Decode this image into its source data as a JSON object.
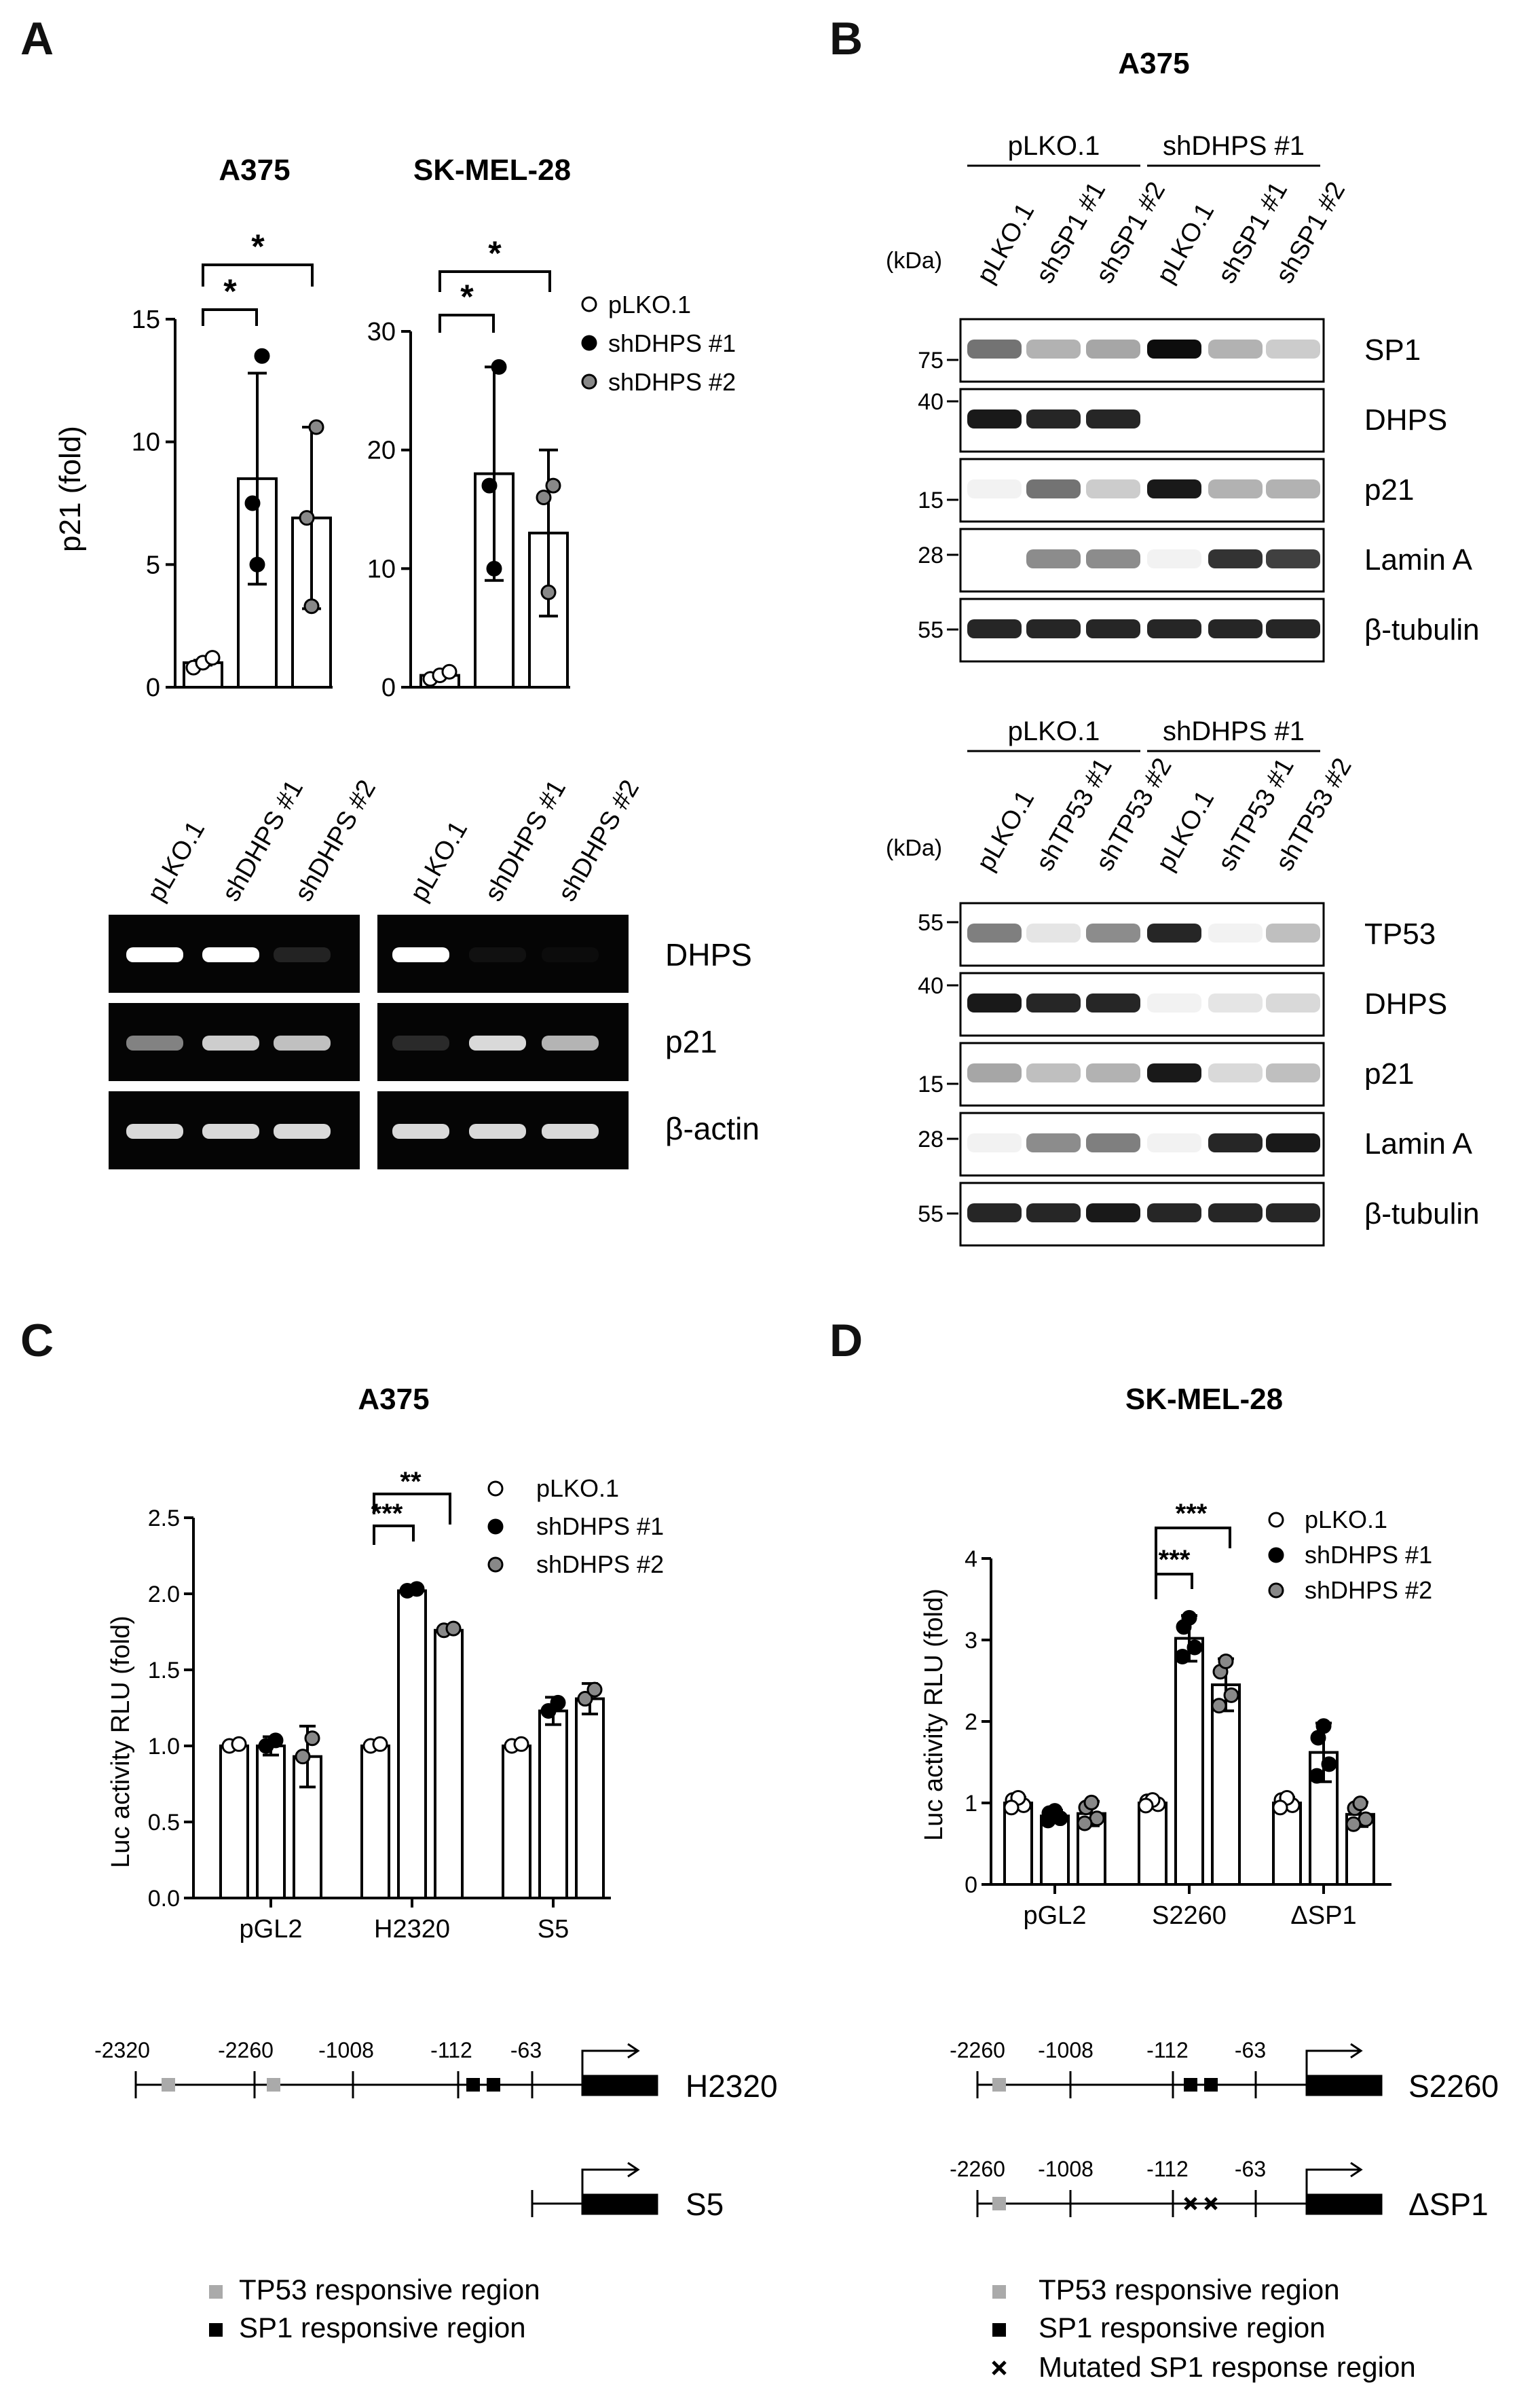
{
  "panels": {
    "A": {
      "letter": "A",
      "chart_titles": [
        "A375",
        "SK-MEL-28"
      ],
      "ylabel": "p21 (fold)",
      "sig": "*",
      "gel_lanes": [
        "pLKO.1",
        "shDHPS #1",
        "shDHPS #2"
      ],
      "gel_rows": [
        "DHPS",
        "p21",
        "β-actin"
      ]
    },
    "B": {
      "letter": "B",
      "title": "A375",
      "kda": "(kDa)",
      "top": {
        "groups": [
          "pLKO.1",
          "shDHPS #1"
        ],
        "lanes": [
          "pLKO.1",
          "shSP1 #1",
          "shSP1 #2",
          "pLKO.1",
          "shSP1 #1",
          "shSP1 #2"
        ],
        "markers": [
          "75",
          "40",
          "15",
          "28",
          "55"
        ],
        "rows": [
          "SP1",
          "DHPS",
          "p21",
          "Lamin A",
          "β-tubulin"
        ]
      },
      "bottom": {
        "groups": [
          "pLKO.1",
          "shDHPS #1"
        ],
        "lanes": [
          "pLKO.1",
          "shTP53 #1",
          "shTP53 #2",
          "pLKO.1",
          "shTP53 #1",
          "shTP53 #2"
        ],
        "markers": [
          "55",
          "40",
          "15",
          "28",
          "55"
        ],
        "rows": [
          "TP53",
          "DHPS",
          "p21",
          "Lamin A",
          "β-tubulin"
        ]
      }
    },
    "C": {
      "letter": "C",
      "title": "A375",
      "ylabel": "Luc activity RLU (fold)",
      "sig": [
        "***",
        "**"
      ],
      "promoter": {
        "h2320_positions": [
          "-2320",
          "-2260",
          "-1008",
          "-112",
          "-63"
        ],
        "h2320_name": "H2320",
        "s5_name": "S5"
      },
      "key": [
        "TP53 responsive region",
        "SP1 responsive region"
      ]
    },
    "D": {
      "letter": "D",
      "title": "SK-MEL-28",
      "ylabel": "Luc activity RLU (fold)",
      "sig": [
        "***",
        "***"
      ],
      "promoter": {
        "positions": [
          "-2260",
          "-1008",
          "-112",
          "-63"
        ],
        "s2260_name": "S2260",
        "dsp1_name": "ΔSP1"
      },
      "key": [
        "TP53 responsive region",
        "SP1 responsive region",
        "Mutated SP1 response region"
      ]
    }
  },
  "legend": [
    "pLKO.1",
    "shDHPS #1",
    "shDHPS #2"
  ],
  "colors": {
    "plko": "#ffffff",
    "sh1": "#000000",
    "sh2": "#888888",
    "tp53_box": "#aaaaaa",
    "sp1_box": "#000000"
  },
  "chart_data": [
    {
      "type": "bar",
      "title": "A375",
      "ylabel": "p21 (fold)",
      "categories": [
        "pLKO.1",
        "shDHPS #1",
        "shDHPS #2"
      ],
      "values": [
        1.0,
        8.5,
        6.9
      ],
      "errors": [
        0.1,
        4.3,
        3.7
      ],
      "ylim": [
        0,
        15
      ],
      "yticks": [
        0,
        5,
        10,
        15
      ],
      "points": [
        [
          0.8,
          1.0,
          1.2
        ],
        [
          5.0,
          7.5,
          13.5
        ],
        [
          3.3,
          6.9,
          10.6
        ]
      ]
    },
    {
      "type": "bar",
      "title": "SK-MEL-28",
      "categories": [
        "pLKO.1",
        "shDHPS #1",
        "shDHPS #2"
      ],
      "values": [
        1.0,
        18.0,
        13.0
      ],
      "errors": [
        0.2,
        9.0,
        7.0
      ],
      "ylim": [
        0,
        30
      ],
      "yticks": [
        0,
        10,
        20,
        30
      ],
      "points": [
        [
          0.7,
          1.0,
          1.3
        ],
        [
          10.0,
          17.0,
          27.0
        ],
        [
          8.0,
          16.0,
          17.0
        ]
      ]
    },
    {
      "type": "bar",
      "title": "A375",
      "ylabel": "Luc activity RLU (fold)",
      "categories": [
        "pGL2",
        "H2320",
        "S5"
      ],
      "series": [
        {
          "name": "pLKO.1",
          "values": [
            1.0,
            1.0,
            1.0
          ]
        },
        {
          "name": "shDHPS #1",
          "values": [
            1.0,
            2.02,
            1.23
          ]
        },
        {
          "name": "shDHPS #2",
          "values": [
            0.93,
            1.76,
            1.31
          ]
        }
      ],
      "errors": [
        [
          0.02,
          0.02,
          0.02
        ],
        [
          0.06,
          0.02,
          0.09
        ],
        [
          0.2,
          0.02,
          0.1
        ]
      ],
      "ylim": [
        0,
        2.5
      ],
      "yticks": [
        0,
        0.5,
        1.0,
        1.5,
        2.0,
        2.5
      ]
    },
    {
      "type": "bar",
      "title": "SK-MEL-28",
      "ylabel": "Luc activity RLU (fold)",
      "categories": [
        "pGL2",
        "S2260",
        "ΔSP1"
      ],
      "series": [
        {
          "name": "pLKO.1",
          "values": [
            1.0,
            1.0,
            1.0
          ]
        },
        {
          "name": "shDHPS #1",
          "values": [
            0.84,
            3.02,
            1.62
          ]
        },
        {
          "name": "shDHPS #2",
          "values": [
            0.87,
            2.45,
            0.86
          ]
        }
      ],
      "errors": [
        [
          0.07,
          0.04,
          0.07
        ],
        [
          0.07,
          0.28,
          0.36
        ],
        [
          0.15,
          0.32,
          0.15
        ]
      ],
      "ylim": [
        0,
        4
      ],
      "yticks": [
        0,
        1,
        2,
        3,
        4
      ]
    }
  ]
}
